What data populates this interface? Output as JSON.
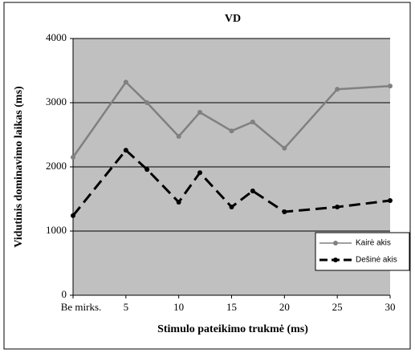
{
  "chart_data": {
    "type": "line",
    "title": "VD",
    "x_label": "Stimulo pateikimo trukmė (ms)",
    "y_label": "Vidutinis dominavimo laikas (ms)",
    "x": [
      0,
      5,
      7,
      10,
      12,
      15,
      17,
      20,
      25,
      30
    ],
    "xlim": [
      0,
      30
    ],
    "xticks": [
      {
        "value": 0,
        "label": "Be mirks."
      },
      5,
      10,
      15,
      20,
      25,
      30
    ],
    "ylim": [
      0,
      4000
    ],
    "yticks": [
      0,
      1000,
      2000,
      3000,
      4000
    ],
    "grid": true,
    "legend": "lower right",
    "series": [
      {
        "name": "Kairė akis",
        "color": "#808080",
        "dash": "solid",
        "values": [
          2150,
          3320,
          3000,
          2475,
          2850,
          2560,
          2700,
          2290,
          3210,
          3260
        ]
      },
      {
        "name": "Dešinė akis",
        "color": "#000000",
        "dash": "dashed",
        "values": [
          1240,
          2260,
          1960,
          1450,
          1910,
          1375,
          1625,
          1300,
          1375,
          1475
        ]
      }
    ]
  }
}
